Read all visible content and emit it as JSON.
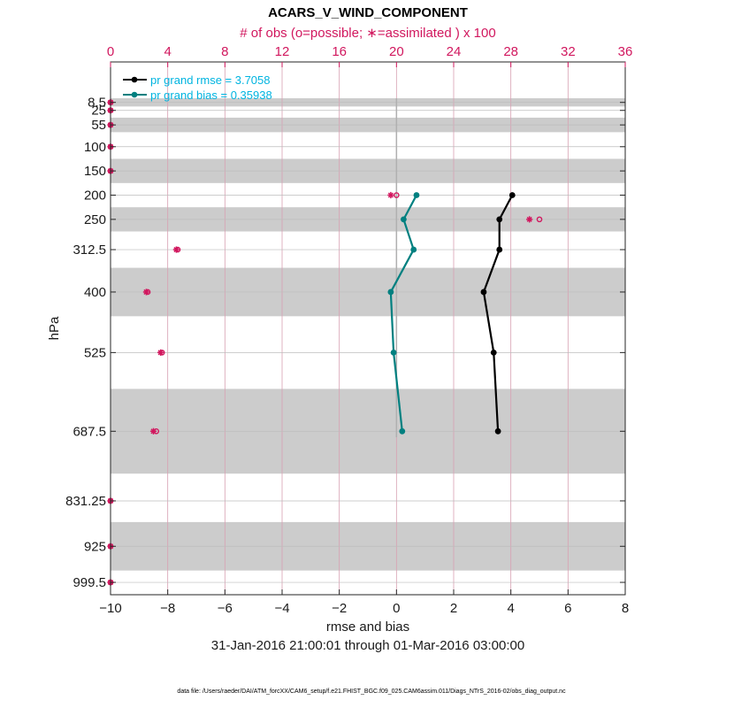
{
  "chart_data": {
    "type": "line",
    "title": "ACARS_V_WIND_COMPONENT",
    "top_axis_label": "# of obs (o=possible; ∗=assimilated ) x 100",
    "xlabel": "rmse and bias",
    "ylabel": "hPa",
    "date_range": "31-Jan-2016 21:00:01 through 01-Mar-2016 03:00:00",
    "footnote": "data file: /Users/raeder/DAI/ATM_forcXX/CAM6_setup/f.e21.FHIST_BGC.f09_025.CAM6assim.011/Diags_NTrS_2016-02/obs_diag_output.nc",
    "xlim": [
      -10,
      8
    ],
    "x_ticks": [
      -10,
      -8,
      -6,
      -4,
      -2,
      0,
      2,
      4,
      6,
      8
    ],
    "top_xlim": [
      0,
      36
    ],
    "top_ticks": [
      0,
      4,
      8,
      12,
      16,
      20,
      24,
      28,
      32,
      36
    ],
    "y_levels": [
      8.5,
      25,
      55,
      100,
      150,
      200,
      250,
      312.5,
      400,
      525,
      687.5,
      831.25,
      925,
      999.5
    ],
    "y_tick_labels": [
      "8.5",
      "25",
      "55",
      "100",
      "150",
      "200",
      "250",
      "312.5",
      "400",
      "525",
      "687.5",
      "831.25",
      "925",
      "999.5"
    ],
    "ylim": [
      1025,
      -75
    ],
    "shaded_bands": [
      [
        0,
        17
      ],
      [
        40,
        70
      ],
      [
        125,
        175
      ],
      [
        225,
        275
      ],
      [
        350,
        450
      ],
      [
        600,
        775
      ],
      [
        875,
        975
      ]
    ],
    "zero_line_range": [
      0,
      700
    ],
    "series": [
      {
        "name": "pr grand rmse = 3.7058",
        "color": "#000000",
        "pressures": [
          200,
          250,
          312.5,
          400,
          525,
          687.5
        ],
        "values": [
          4.05,
          3.6,
          3.6,
          3.05,
          3.4,
          3.55
        ]
      },
      {
        "name": "pr grand bias = 0.35938",
        "color": "#008080",
        "pressures": [
          200,
          250,
          312.5,
          400,
          525,
          687.5
        ],
        "values": [
          0.7,
          0.25,
          0.6,
          -0.2,
          -0.1,
          0.2
        ]
      }
    ],
    "obs_counts": {
      "color": "#d1175e",
      "pressures": [
        8.5,
        25,
        55,
        100,
        150,
        200,
        250,
        312.5,
        400,
        525,
        687.5,
        831.25,
        925,
        999.5
      ],
      "possible": [
        0,
        0,
        0,
        0,
        0,
        20,
        30,
        4.7,
        2.6,
        3.6,
        3.2,
        0,
        0,
        0
      ],
      "assimilated": [
        0,
        0,
        0,
        0,
        0,
        19.6,
        29.3,
        4.6,
        2.5,
        3.5,
        3.0,
        0,
        0,
        0
      ]
    },
    "legend_position": "top-left"
  }
}
